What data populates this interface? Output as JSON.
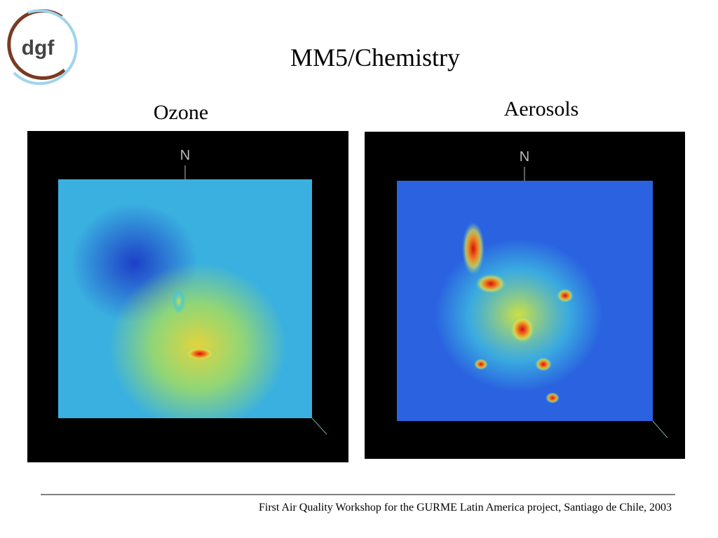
{
  "logo": {
    "text": "dgf"
  },
  "title": "MM5/Chemistry",
  "panels": [
    {
      "label": "Ozone",
      "north_label": "N"
    },
    {
      "label": "Aerosols",
      "north_label": "N"
    }
  ],
  "footer": "First Air Quality Workshop for the GURME Latin America project, Santiago de Chile, 2003"
}
